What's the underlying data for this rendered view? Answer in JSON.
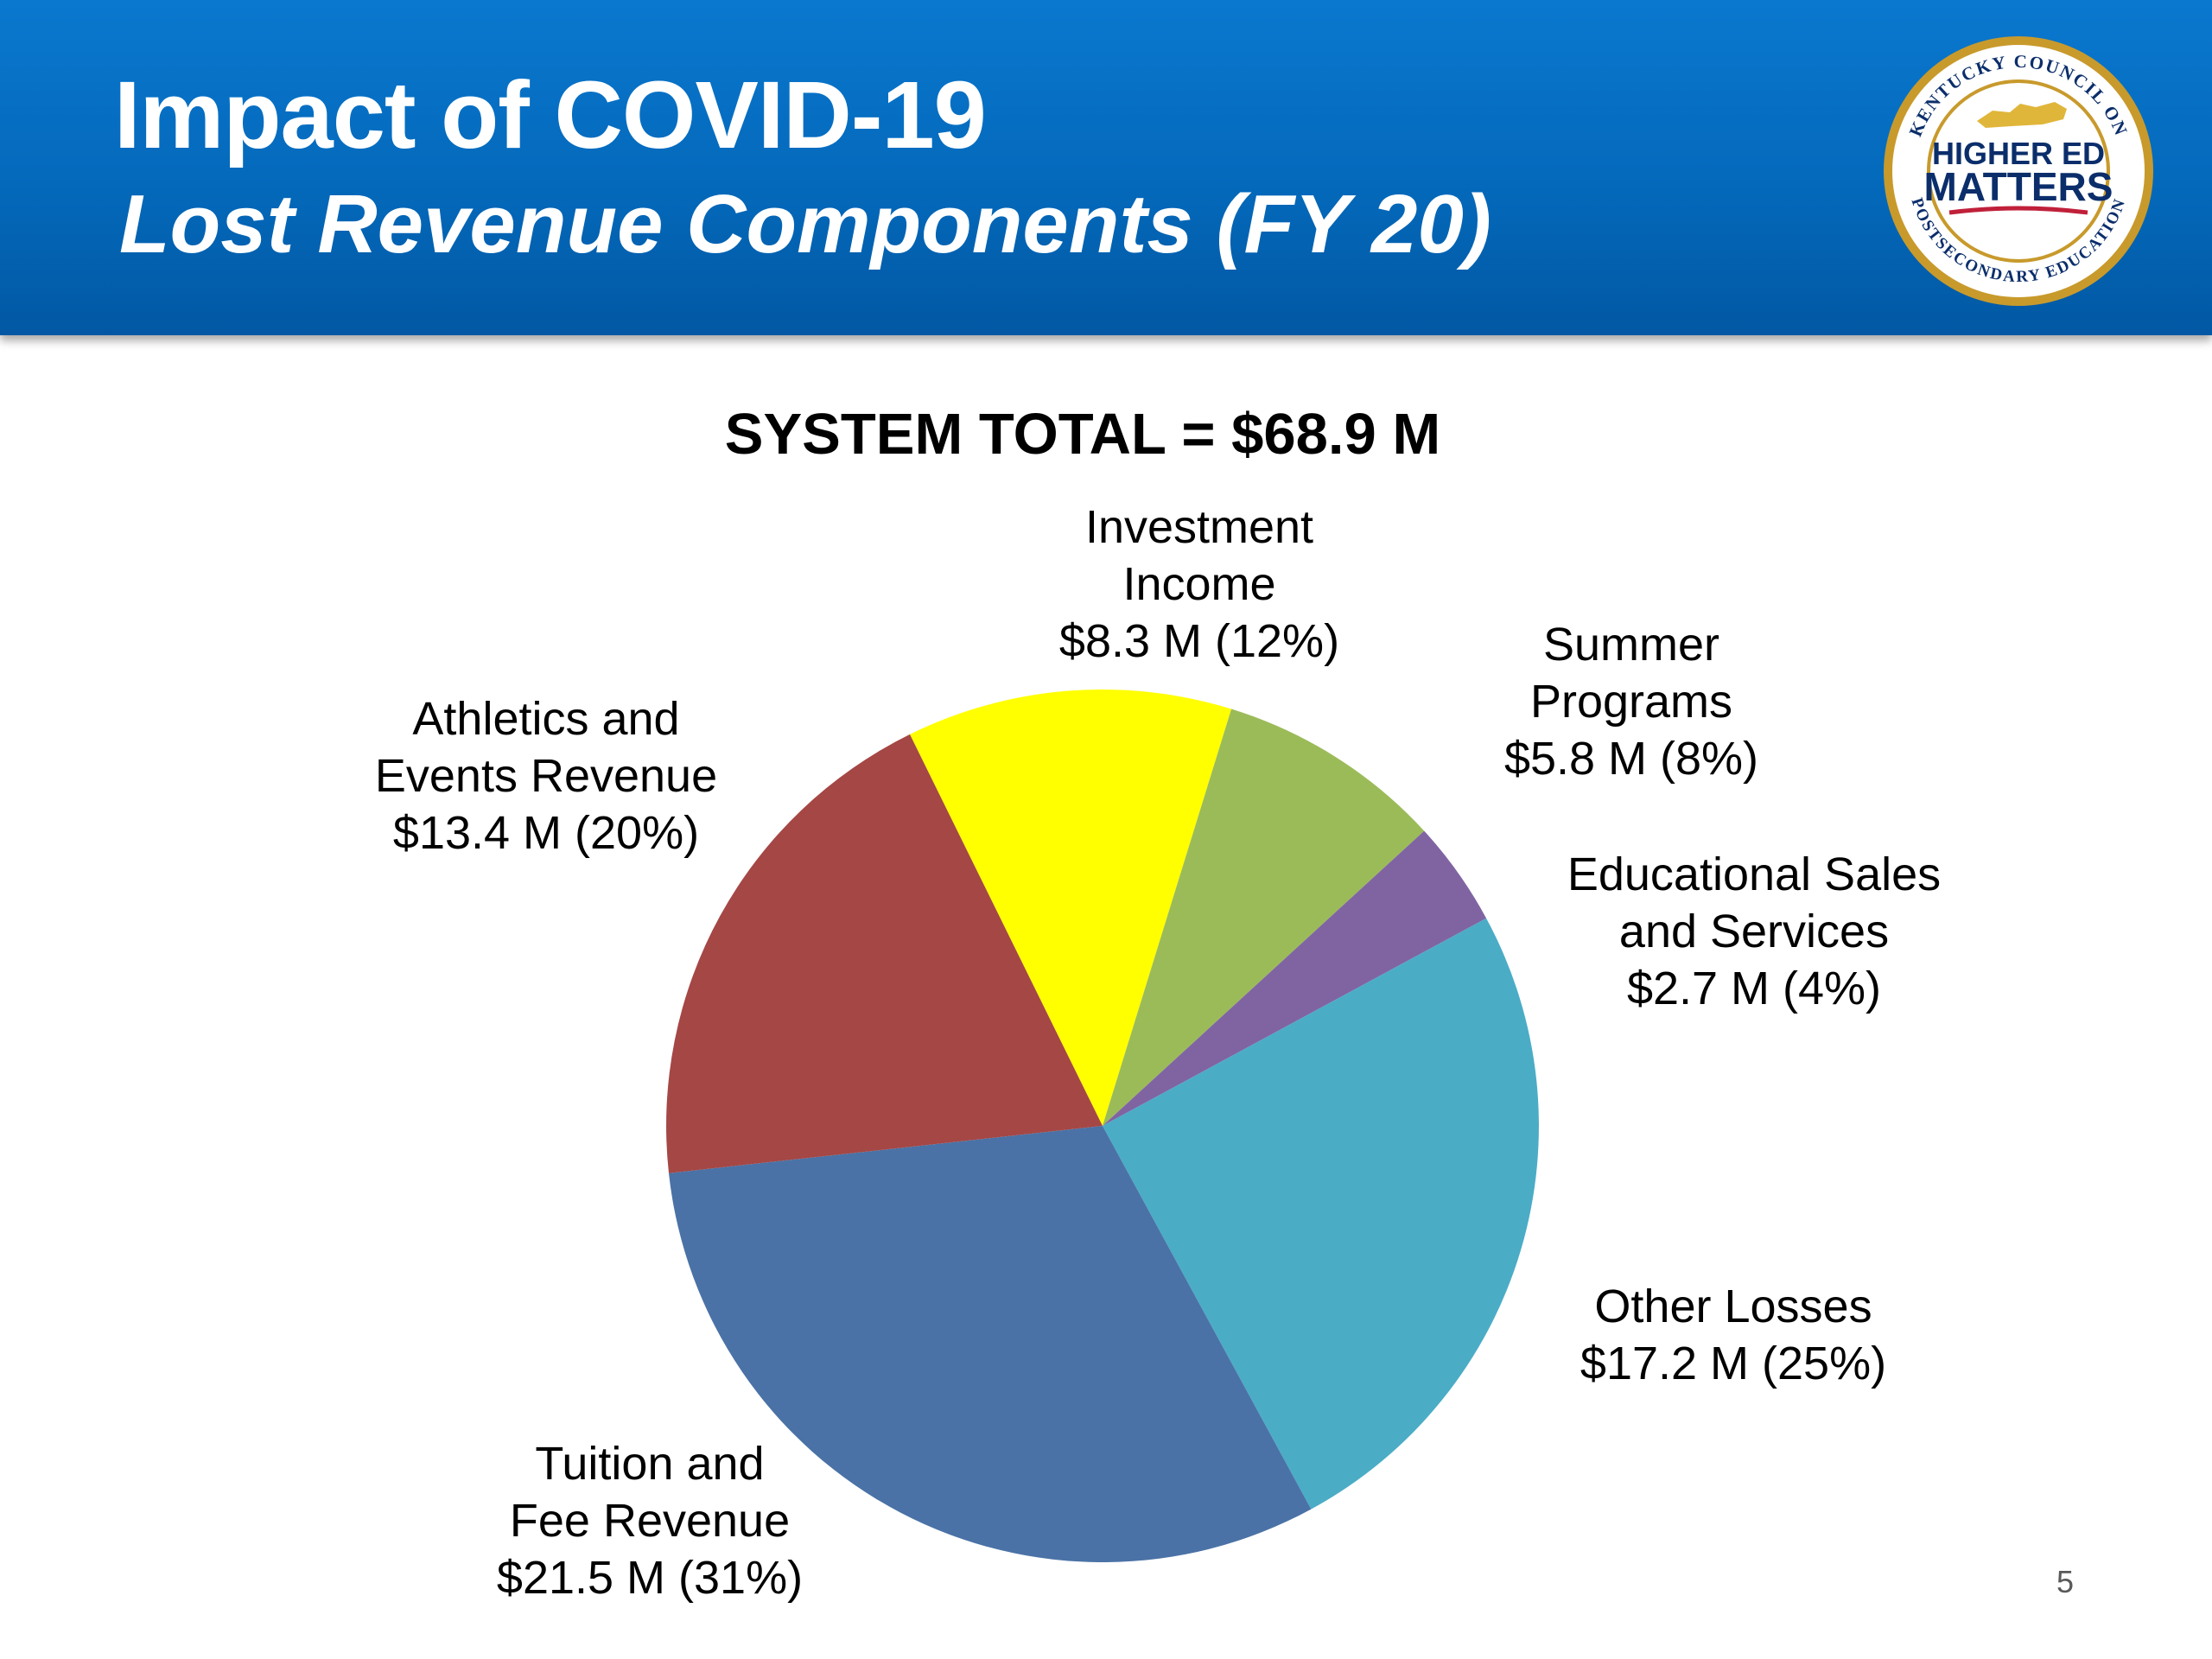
{
  "header": {
    "title": "Impact of COVID-19",
    "subtitle": "Lost Revenue Components (FY 20)"
  },
  "logo": {
    "text_top": "KENTUCKY COUNCIL ON",
    "text_bottom": "POSTSECONDARY EDUCATION",
    "line1": "HIGHER ED",
    "line2": "MATTERS",
    "colors": {
      "ring": "#c89a2c",
      "ring_inner": "#ffffff",
      "navy": "#0b2e6b",
      "state": "#e0b63a",
      "accent_red": "#c0203a"
    }
  },
  "page_number": "5",
  "chart_data": {
    "type": "pie",
    "title": "SYSTEM TOTAL = $68.9 M",
    "start_angle_deg": -26.2,
    "direction": "clockwise",
    "slices": [
      {
        "label_lines": [
          "Investment",
          "Income",
          "$8.3 M (12%)"
        ],
        "value": 8.3,
        "percent": 12,
        "color": "#ffff00"
      },
      {
        "label_lines": [
          "Summer",
          "Programs",
          "$5.8 M (8%)"
        ],
        "value": 5.8,
        "percent": 8,
        "color": "#9bbb59"
      },
      {
        "label_lines": [
          "Educational Sales",
          "and Services",
          "$2.7 M (4%)"
        ],
        "value": 2.7,
        "percent": 4,
        "color": "#8064a2"
      },
      {
        "label_lines": [
          "Other Losses",
          "$17.2 M (25%)"
        ],
        "value": 17.2,
        "percent": 25,
        "color": "#4bacc6"
      },
      {
        "label_lines": [
          "Tuition and",
          "Fee Revenue",
          "$21.5 M (31%)"
        ],
        "value": 21.5,
        "percent": 31,
        "color": "#4a72a6"
      },
      {
        "label_lines": [
          "Athletics and",
          "Events Revenue",
          "$13.4 M (20%)"
        ],
        "value": 13.4,
        "percent": 20,
        "color": "#a54745"
      }
    ]
  }
}
